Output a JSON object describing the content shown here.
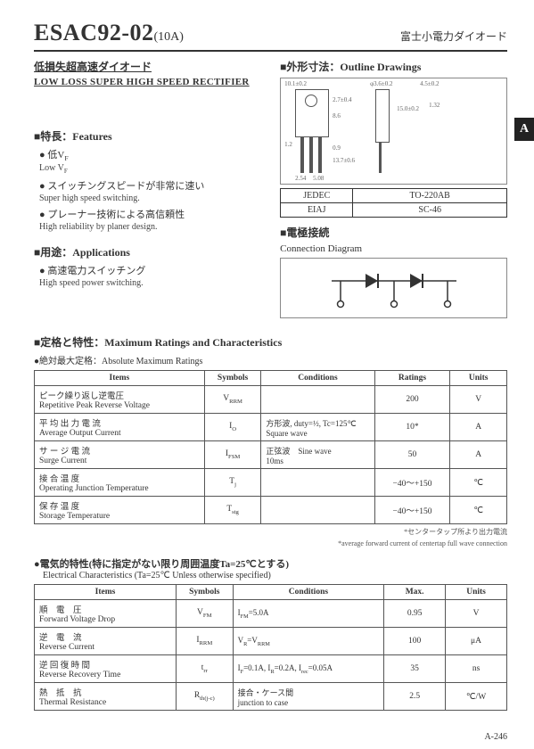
{
  "header": {
    "partNumber": "ESAC92-02",
    "partSuffix": "(10A)",
    "jpRight": "富士小電力ダイオード"
  },
  "subtitle": {
    "jp": "低損失超高速ダイオード",
    "en": "LOW LOSS SUPER HIGH SPEED RECTIFIER"
  },
  "outline": {
    "head": "■外形寸法：Outline Drawings"
  },
  "tab": "A",
  "features": {
    "head": "■特長：Features",
    "items": [
      {
        "jp": "● 低V",
        "jpSub": "F",
        "en": "Low V",
        "enSub": "F"
      },
      {
        "jp": "● スイッチングスピードが非常に速い",
        "en": "Super high speed switching."
      },
      {
        "jp": "● プレーナー技術による高信頼性",
        "en": "High reliability by planer design."
      }
    ]
  },
  "applications": {
    "head": "■用途：Applications",
    "jp": "● 高速電力スイッチング",
    "en": "High speed power switching."
  },
  "pkgTable": {
    "rows": [
      [
        "JEDEC",
        "TO-220AB"
      ],
      [
        "EIAJ",
        "SC-46"
      ]
    ]
  },
  "connection": {
    "head": "■電極接続",
    "sub": "Connection Diagram"
  },
  "ratings": {
    "head": "■定格と特性：Maximum Ratings and Characteristics",
    "sub": "●絶対最大定格：Absolute Maximum Ratings",
    "columns": [
      "Items",
      "Symbols",
      "Conditions",
      "Ratings",
      "Units"
    ],
    "rows": [
      {
        "jp": "ピーク繰り返し逆電圧",
        "en": "Repetitive Peak Reverse Voltage",
        "sym": "V",
        "symSub": "RRM",
        "cond": "",
        "rating": "200",
        "unit": "V"
      },
      {
        "jp": "平 均 出 力 電 流",
        "en": "Average Output Current",
        "sym": "I",
        "symSub": "O",
        "cond": "方形波, duty=½, Tc=125℃\nSquare wave",
        "rating": "10*",
        "unit": "A"
      },
      {
        "jp": "サ ー ジ 電 流",
        "en": "Surge Current",
        "sym": "I",
        "symSub": "FSM",
        "cond": "正弦波　Sine wave\n10ms",
        "rating": "50",
        "unit": "A"
      },
      {
        "jp": "接 合 温 度",
        "en": "Operating Junction Temperature",
        "sym": "T",
        "symSub": "j",
        "cond": "",
        "rating": "−40～+150",
        "unit": "℃"
      },
      {
        "jp": "保 存 温 度",
        "en": "Storage Temperature",
        "sym": "T",
        "symSub": "stg",
        "cond": "",
        "rating": "−40～+150",
        "unit": "℃"
      }
    ],
    "footnote1": "*センタータップ所より出力電流",
    "footnote2": "*average forward current of centertap full wave connection"
  },
  "elec": {
    "head": "●電気的特性(特に指定がない限り周囲温度Ta=25℃とする)",
    "sub": "Electrical Characteristics (Ta=25℃ Unless otherwise specified)",
    "columns": [
      "Items",
      "Symbols",
      "Conditions",
      "Max.",
      "Units"
    ],
    "rows": [
      {
        "jp": "順　電　圧",
        "en": "Forward Voltage Drop",
        "sym": "V",
        "symSub": "FM",
        "cond": "I",
        "condSub": "FM",
        "condRest": "=5.0A",
        "max": "0.95",
        "unit": "V"
      },
      {
        "jp": "逆　電　流",
        "en": "Reverse Current",
        "sym": "I",
        "symSub": "RRM",
        "cond": "V",
        "condSub": "R",
        "condRest": "=V",
        "condSub2": "RRM",
        "max": "100",
        "unit": "μA"
      },
      {
        "jp": "逆 回 復 時 間",
        "en": "Reverse Recovery Time",
        "sym": "t",
        "symSub": "rr",
        "cond": "I",
        "condSub": "F",
        "condRest": "=0.1A, I",
        "condSub2": "R",
        "condRest2": "=0.2A, I",
        "condSub3": "rec",
        "condRest3": "=0.05A",
        "max": "35",
        "unit": "ns"
      },
      {
        "jp": "熱　抵　抗",
        "en": "Thermal Resistance",
        "sym": "R",
        "symSub": "th(j-c)",
        "cond": "接合・ケース間\njunction to case",
        "max": "2.5",
        "unit": "℃/W"
      }
    ]
  },
  "pageNum": "A-246"
}
